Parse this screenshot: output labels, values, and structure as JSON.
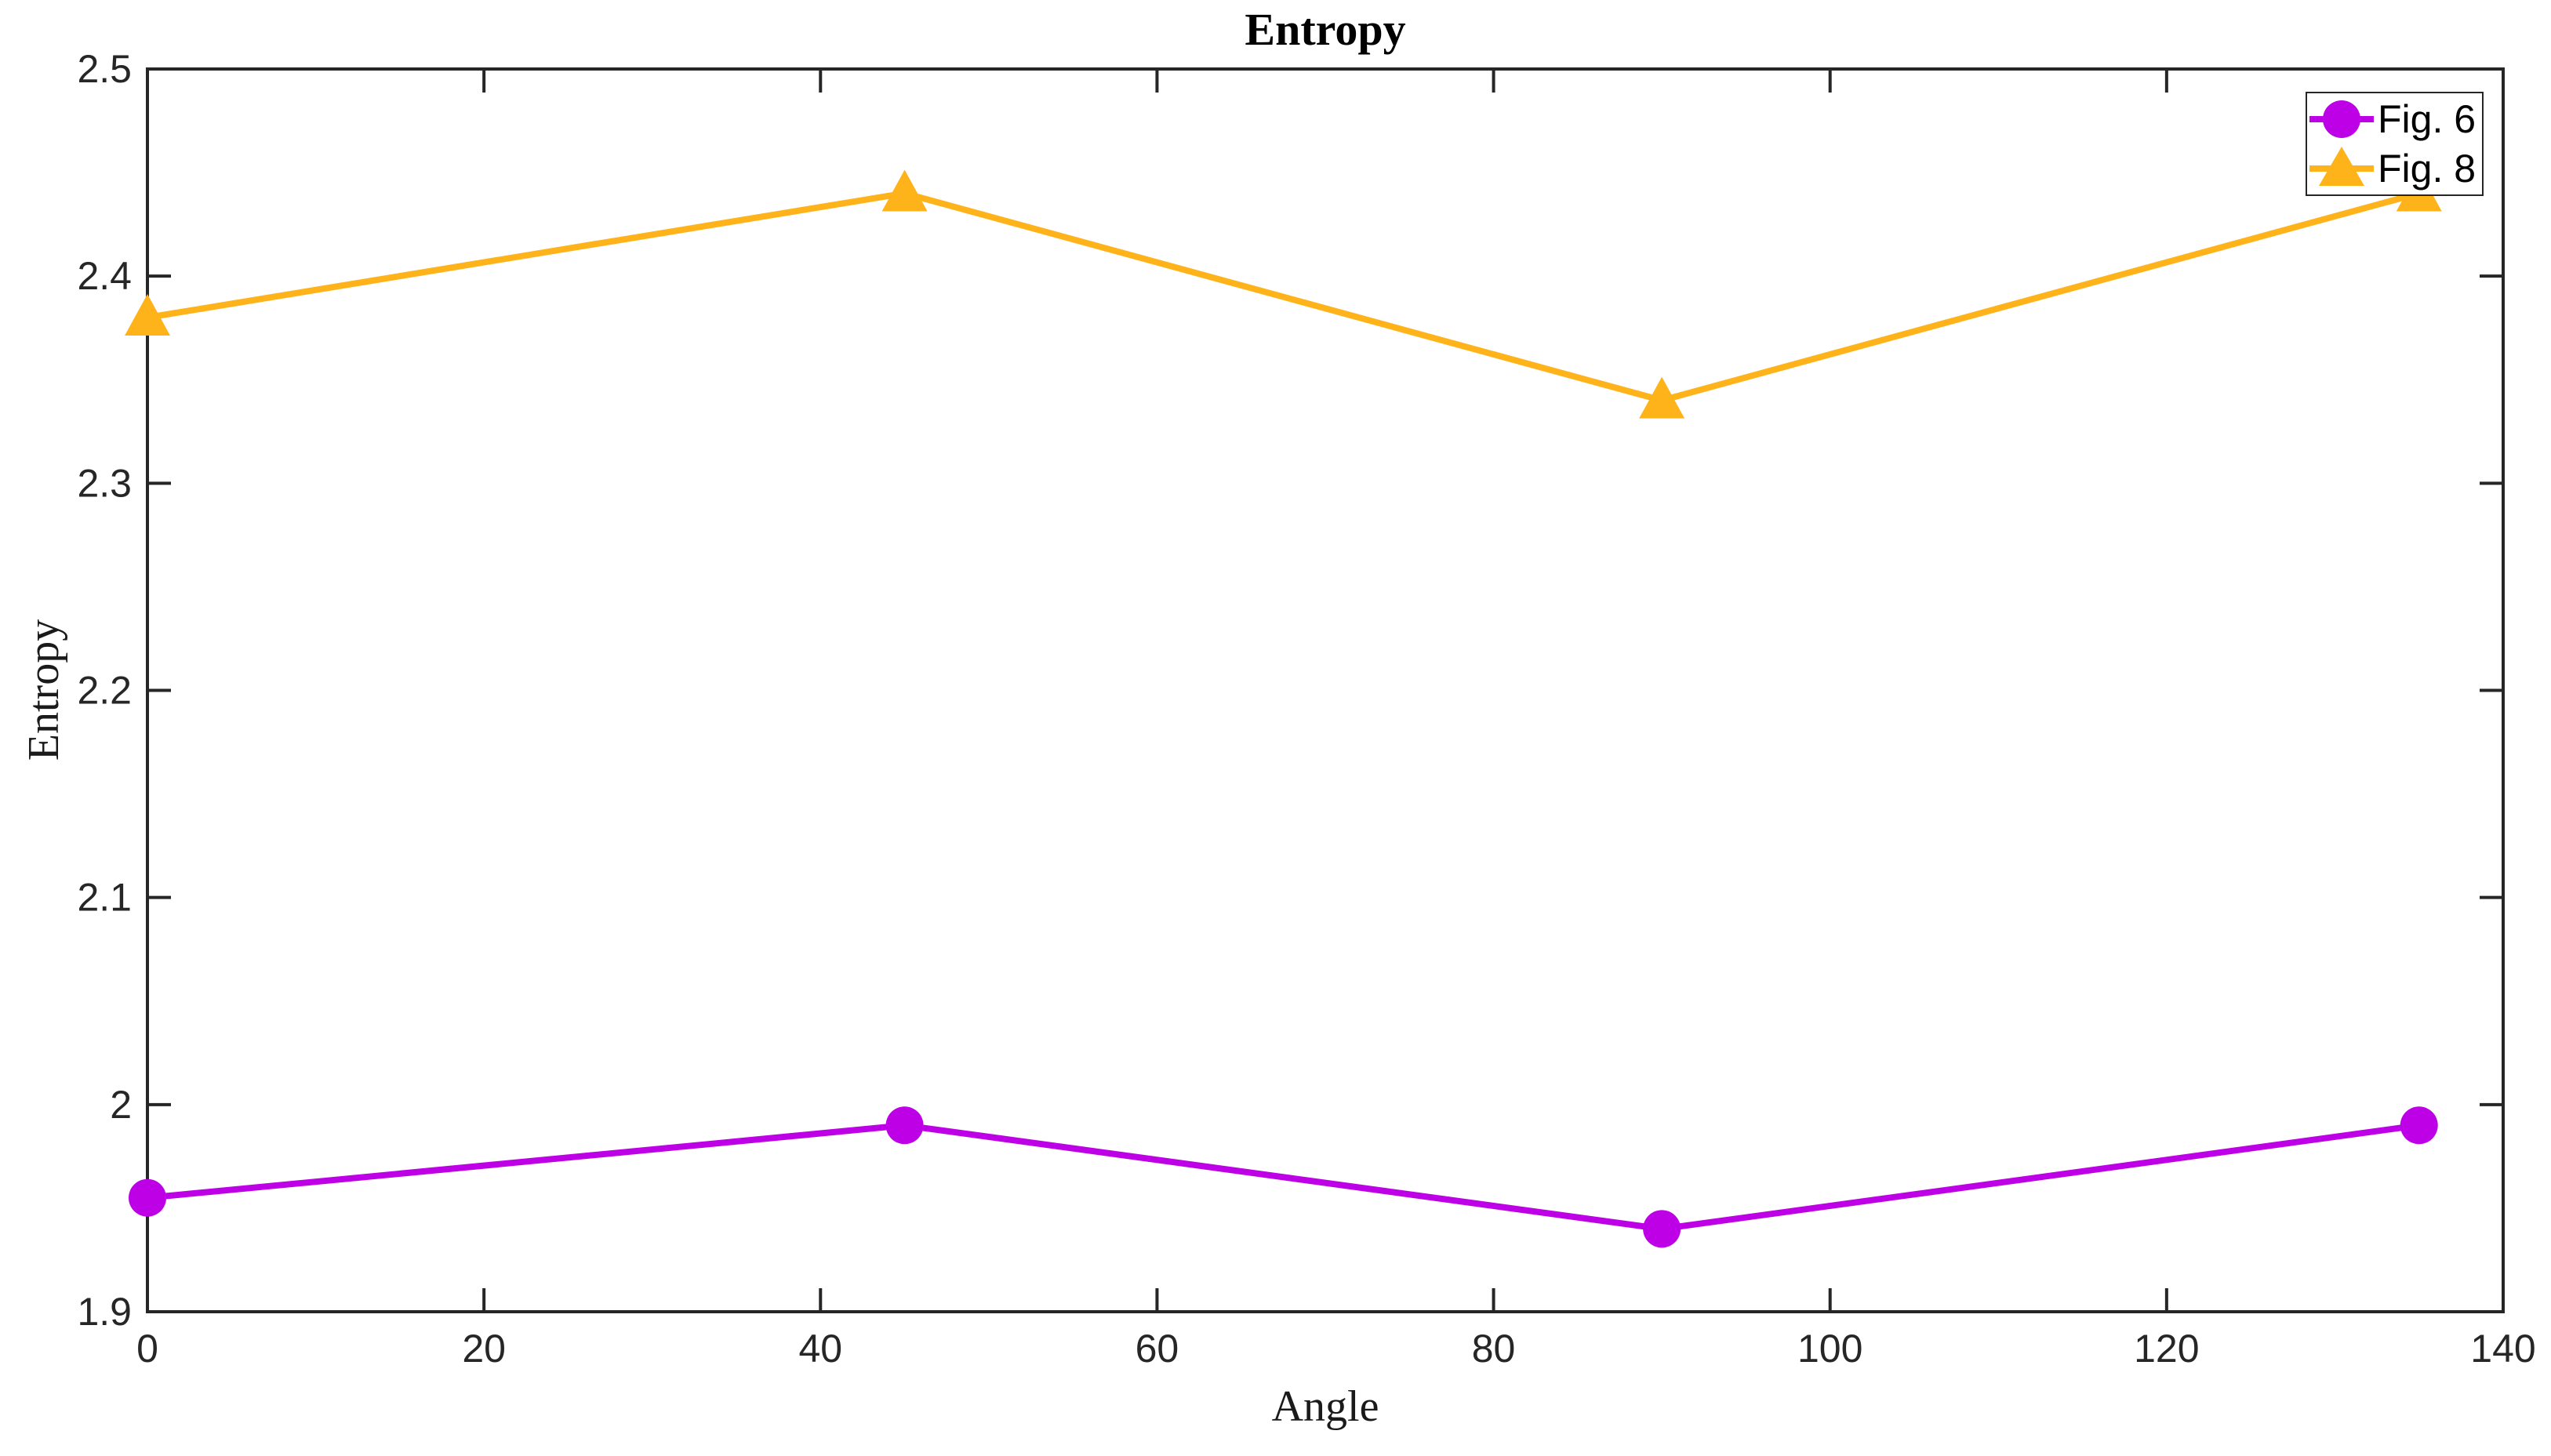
{
  "chart_data": {
    "type": "line",
    "title": "Entropy",
    "xlabel": "Angle",
    "ylabel": "Entropy",
    "xlim": [
      0,
      140
    ],
    "ylim": [
      1.9,
      2.5
    ],
    "xticks": [
      0,
      20,
      40,
      60,
      80,
      100,
      120,
      140
    ],
    "xticklabels": [
      "0",
      "20",
      "40",
      "60",
      "80",
      "100",
      "120",
      "140"
    ],
    "yticks": [
      1.9,
      2,
      2.1,
      2.2,
      2.3,
      2.4,
      2.5
    ],
    "yticklabels": [
      "1.9",
      "2",
      "2.1",
      "2.2",
      "2.3",
      "2.4",
      "2.5"
    ],
    "x": [
      0,
      45,
      90,
      135
    ],
    "series": [
      {
        "name": "Fig. 6",
        "marker": "circle",
        "color": "#BE00E6",
        "values": [
          1.955,
          1.99,
          1.94,
          1.99
        ]
      },
      {
        "name": "Fig. 8",
        "marker": "triangle",
        "color": "#FFB31A",
        "values": [
          2.38,
          2.44,
          2.34,
          2.44
        ]
      }
    ],
    "legend_position": "top-right",
    "grid": false,
    "axis_color": "#262626",
    "background_color": "#ffffff"
  }
}
